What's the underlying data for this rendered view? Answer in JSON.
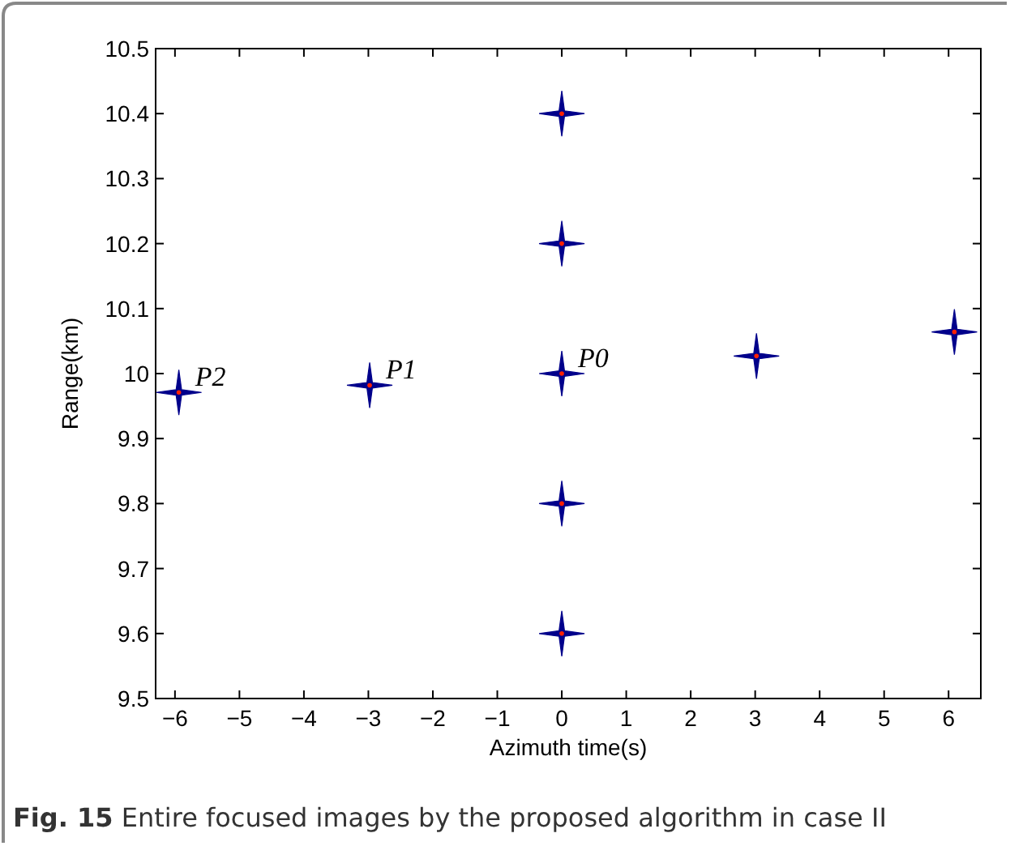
{
  "chart_data": {
    "type": "scatter",
    "xlabel": "Azimuth time(s)",
    "ylabel": "Range(km)",
    "x": [
      -5.94,
      -2.98,
      0,
      0,
      0,
      0,
      0,
      3.02,
      6.09
    ],
    "series": [
      {
        "color": "#00008b",
        "values": [
          9.971,
          9.982,
          10,
          10.2,
          10.4,
          9.8,
          9.6,
          10.027,
          10.064
        ]
      }
    ],
    "marker": "star",
    "grid": false,
    "xlim": [
      -6.3,
      6.5
    ],
    "xticks": [
      -6,
      -5,
      -4,
      -3,
      -2,
      -1,
      0,
      1,
      2,
      3,
      4,
      5,
      6
    ],
    "ylim": [
      9.5,
      10.5
    ],
    "yticks": [
      9.5,
      9.6,
      9.7,
      9.8,
      9.9,
      10,
      10.1,
      10.2,
      10.3,
      10.4,
      10.5
    ],
    "annotations": [
      {
        "text": "P2",
        "x": -5.94,
        "y": 9.971
      },
      {
        "text": "P1",
        "x": -2.98,
        "y": 9.982
      },
      {
        "text": "P0",
        "x": 0,
        "y": 10
      },
      "Fig. 15 Entire focused images by the proposed algorithm in case II"
    ]
  }
}
